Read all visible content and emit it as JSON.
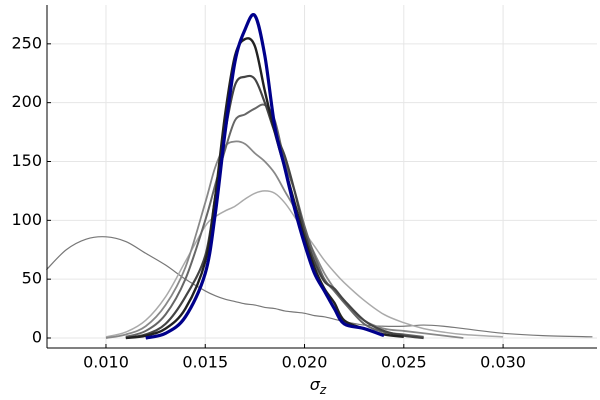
{
  "chart_data": {
    "type": "line",
    "x_label": "σ",
    "x_label_subscript": "z",
    "x": [
      0.007,
      0.008,
      0.009,
      0.01,
      0.011,
      0.012,
      0.013,
      0.014,
      0.015,
      0.0155,
      0.016,
      0.0165,
      0.017,
      0.0175,
      0.018,
      0.0185,
      0.019,
      0.0195,
      0.02,
      0.0205,
      0.021,
      0.0215,
      0.022,
      0.023,
      0.024,
      0.025,
      0.026,
      0.027,
      0.028,
      0.03,
      0.032,
      0.0345
    ],
    "series": [
      {
        "color": "#777777",
        "width": 1.2,
        "values": [
          58,
          75,
          84,
          86,
          82,
          72,
          62,
          50,
          40,
          36,
          33,
          31,
          29,
          28,
          26,
          25,
          23,
          22,
          21,
          19,
          18,
          16,
          14,
          11,
          10,
          10,
          11,
          10,
          8,
          4,
          2,
          1
        ]
      },
      {
        "color": "#aaaaaa",
        "width": 1.5,
        "values": [
          null,
          null,
          null,
          1,
          5,
          15,
          35,
          65,
          95,
          103,
          108,
          112,
          118,
          123,
          125,
          123,
          115,
          103,
          90,
          78,
          66,
          56,
          47,
          32,
          20,
          13,
          8,
          5,
          3,
          1,
          null,
          null
        ]
      },
      {
        "color": "#888888",
        "width": 1.8,
        "values": [
          null,
          null,
          null,
          0,
          3,
          10,
          28,
          60,
          115,
          145,
          163,
          167,
          165,
          157,
          150,
          140,
          125,
          110,
          90,
          72,
          55,
          42,
          30,
          15,
          8,
          6,
          4,
          2,
          0,
          null,
          null,
          null
        ]
      },
      {
        "color": "#666666",
        "width": 2,
        "values": [
          null,
          null,
          null,
          null,
          1,
          6,
          20,
          50,
          100,
          130,
          160,
          185,
          190,
          195,
          198,
          185,
          150,
          125,
          95,
          70,
          50,
          40,
          30,
          12,
          5,
          3,
          1,
          null,
          null,
          null,
          null,
          null
        ]
      },
      {
        "color": "#444444",
        "width": 2.2,
        "values": [
          null,
          null,
          null,
          null,
          0,
          3,
          12,
          35,
          70,
          120,
          175,
          215,
          222,
          220,
          200,
          175,
          155,
          125,
          90,
          65,
          48,
          42,
          32,
          15,
          6,
          2,
          0,
          null,
          null,
          null,
          null,
          null
        ]
      },
      {
        "color": "#222222",
        "width": 2.4,
        "values": [
          null,
          null,
          null,
          null,
          0,
          2,
          8,
          25,
          65,
          120,
          190,
          240,
          254,
          248,
          210,
          175,
          145,
          115,
          85,
          60,
          42,
          30,
          15,
          8,
          3,
          1,
          null,
          null,
          null,
          null,
          null,
          null
        ]
      },
      {
        "color": "#00008b",
        "width": 3.2,
        "values": [
          null,
          null,
          null,
          null,
          null,
          0,
          4,
          18,
          55,
          105,
          175,
          235,
          262,
          274,
          240,
          180,
          145,
          110,
          80,
          55,
          40,
          25,
          12,
          8,
          2,
          null,
          null,
          null,
          null,
          null,
          null,
          null
        ]
      }
    ],
    "xlim": [
      0.00703,
      0.03473
    ],
    "ylim": [
      -8.5,
      283
    ],
    "xticks": [
      {
        "value": 0.01,
        "label": "0.010"
      },
      {
        "value": 0.015,
        "label": "0.015"
      },
      {
        "value": 0.02,
        "label": "0.020"
      },
      {
        "value": 0.025,
        "label": "0.025"
      },
      {
        "value": 0.03,
        "label": "0.030"
      }
    ],
    "yticks": [
      0,
      50,
      100,
      150,
      200,
      250
    ],
    "grid": true
  }
}
